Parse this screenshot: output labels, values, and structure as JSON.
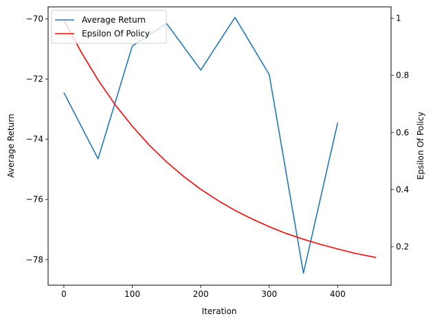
{
  "chart_data": {
    "type": "line",
    "title": "",
    "xlabel": "Iteration",
    "ylabel_left": "Average Return",
    "ylabel_right": "Epsilon Of Policy",
    "xlim": [
      -23,
      478
    ],
    "ylim_left": [
      -78.85,
      -69.6
    ],
    "ylim_right": [
      0.065,
      1.04
    ],
    "x_ticks": [
      0,
      100,
      200,
      300,
      400
    ],
    "y_ticks_left": [
      -78,
      -76,
      -74,
      -72,
      -70
    ],
    "y_ticks_right": [
      0.2,
      0.4,
      0.6,
      0.8,
      1.0
    ],
    "grid": false,
    "legend_position": "upper-left",
    "series": [
      {
        "name": "Average Return",
        "axis": "left",
        "color": "#1f77b4",
        "x": [
          0,
          50,
          100,
          150,
          200,
          250,
          300,
          350,
          400
        ],
        "y": [
          -72.45,
          -74.65,
          -70.9,
          -70.15,
          -71.7,
          -69.95,
          -71.85,
          -78.45,
          -73.45
        ]
      },
      {
        "name": "Epsilon Of Policy",
        "axis": "right",
        "color": "#ff0000",
        "x": [
          0,
          25,
          50,
          75,
          100,
          125,
          150,
          175,
          200,
          225,
          250,
          275,
          300,
          325,
          350,
          375,
          400,
          425,
          456
        ],
        "y": [
          0.995,
          0.883,
          0.784,
          0.697,
          0.622,
          0.555,
          0.497,
          0.446,
          0.401,
          0.362,
          0.327,
          0.297,
          0.27,
          0.246,
          0.226,
          0.208,
          0.192,
          0.177,
          0.162
        ]
      }
    ]
  }
}
